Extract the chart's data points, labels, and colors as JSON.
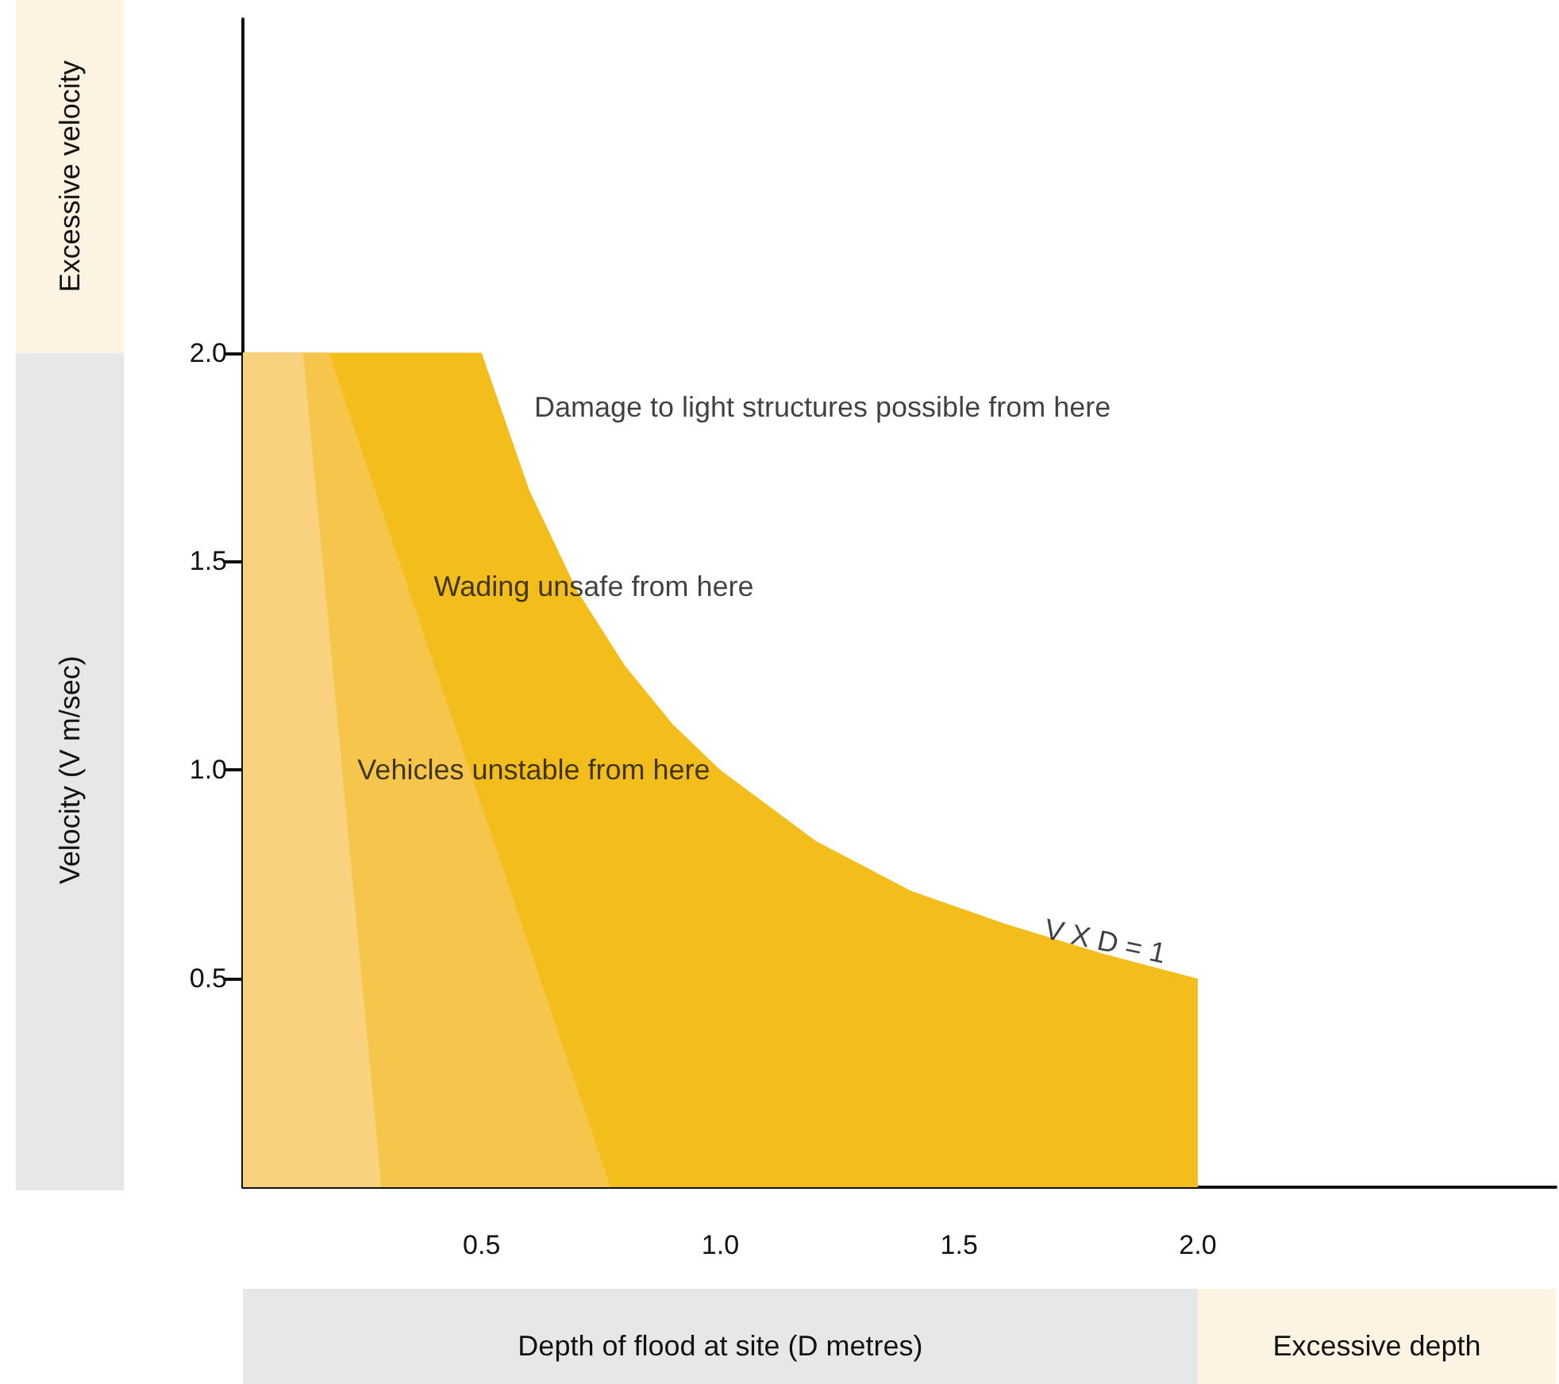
{
  "chart_data": {
    "type": "area",
    "xlabel": "Depth of flood at site (D metres)",
    "ylabel": "Velocity (V m/sec)",
    "xlim": [
      0,
      2.75
    ],
    "ylim": [
      0,
      2.8
    ],
    "xticks": [
      {
        "value": 0.5,
        "label": "0.5"
      },
      {
        "value": 1,
        "label": "1.0"
      },
      {
        "value": 1.5,
        "label": "1.5"
      },
      {
        "value": 2,
        "label": "2.0"
      }
    ],
    "yticks": [
      {
        "value": 0.5,
        "label": "0.5"
      },
      {
        "value": 1,
        "label": "1.0"
      },
      {
        "value": 1.5,
        "label": "1.5"
      },
      {
        "value": 2,
        "label": "2.0"
      }
    ],
    "series": [
      {
        "color": "#f3bd1b",
        "x": [
          0,
          0.5,
          0.6,
          0.7,
          0.8,
          0.9,
          1.0,
          1.2,
          1.4,
          1.6,
          1.8,
          2.0,
          2.0
        ],
        "values": [
          2,
          2,
          1.67,
          1.43,
          1.25,
          1.11,
          1,
          0.83,
          0.71,
          0.63,
          0.56,
          0.5,
          0
        ]
      },
      {
        "color": "#f6c54b",
        "x": [
          0,
          0.18,
          0.77
        ],
        "values": [
          2,
          2,
          0
        ]
      },
      {
        "color": "#f8d27f",
        "x": [
          0,
          0.126,
          0.29
        ],
        "values": [
          2,
          2,
          0
        ]
      }
    ],
    "annotations": [
      "Damage to light structures possible from here",
      "Wading unsafe from here",
      "Vehicles unstable from here",
      {
        "text": "V X D = 1",
        "x": 1.68,
        "y": 0.62
      },
      "Excessive velocity",
      "Excessive depth"
    ],
    "marker": "none",
    "grid": false
  }
}
